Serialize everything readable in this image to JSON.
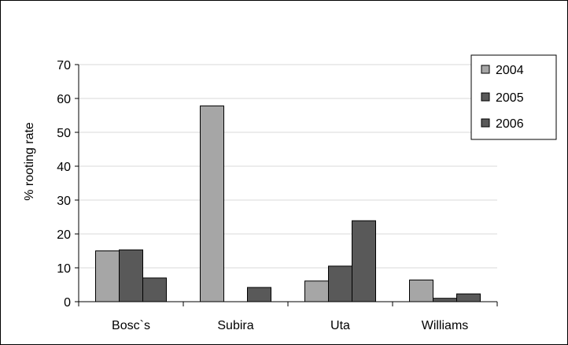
{
  "chart_data": {
    "type": "bar",
    "categories": [
      "Bosc`s",
      "Subira",
      "Uta",
      "Williams"
    ],
    "series": [
      {
        "name": "2004",
        "values": [
          15,
          57.8,
          6.1,
          6.4
        ],
        "color": "#A6A6A6"
      },
      {
        "name": "2005",
        "values": [
          15.3,
          null,
          10.5,
          1
        ],
        "color": "#595959"
      },
      {
        "name": "2006",
        "values": [
          7,
          4.2,
          23.9,
          2.3
        ],
        "color": "#595959"
      }
    ],
    "ylabel": "% rooting rate",
    "ylim": [
      0,
      70
    ],
    "yticks": [
      0,
      10,
      20,
      30,
      40,
      50,
      60,
      70
    ],
    "grid": true,
    "legend_position": "top-right"
  }
}
